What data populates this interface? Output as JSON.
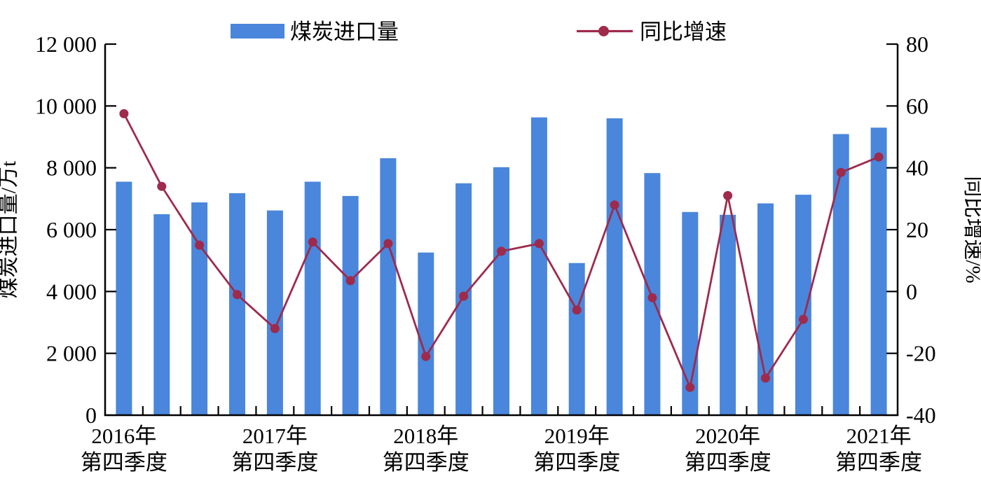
{
  "legend": {
    "bar_label": "煤炭进口量",
    "line_label": "同比增速"
  },
  "left_axis": {
    "title": "煤炭进口量/万t",
    "ticks": [
      "12 000",
      "10 000",
      "8 000",
      "6 000",
      "4 000",
      "2 000",
      "0"
    ]
  },
  "right_axis": {
    "title": "同比增速/%",
    "ticks": [
      "80",
      "60",
      "40",
      "20",
      "0",
      "-20",
      "-40"
    ]
  },
  "x_axis": {
    "labels": [
      {
        "index": 0,
        "year": "2016年",
        "quarter": "第四季度"
      },
      {
        "index": 4,
        "year": "2017年",
        "quarter": "第四季度"
      },
      {
        "index": 8,
        "year": "2018年",
        "quarter": "第四季度"
      },
      {
        "index": 12,
        "year": "2019年",
        "quarter": "第四季度"
      },
      {
        "index": 16,
        "year": "2020年",
        "quarter": "第四季度"
      },
      {
        "index": 20,
        "year": "2021年",
        "quarter": "第四季度"
      }
    ]
  },
  "colors": {
    "bar": "#4a86db",
    "line": "#9e2a4c",
    "axis": "#000000"
  },
  "chart_data": {
    "type": "combo-bar-line",
    "categories": [
      "2016Q4",
      "2017Q1",
      "2017Q2",
      "2017Q3",
      "2017Q4",
      "2018Q1",
      "2018Q2",
      "2018Q3",
      "2018Q4",
      "2019Q1",
      "2019Q2",
      "2019Q3",
      "2019Q4",
      "2020Q1",
      "2020Q2",
      "2020Q3",
      "2020Q4",
      "2021Q1",
      "2021Q2",
      "2021Q3",
      "2021Q4"
    ],
    "series": [
      {
        "name": "煤炭进口量",
        "type": "bar",
        "y_axis": "left",
        "unit": "万t",
        "values": [
          7550,
          6500,
          6880,
          7180,
          6620,
          7550,
          7090,
          8310,
          5260,
          7500,
          8020,
          9630,
          4920,
          9600,
          7830,
          6570,
          6480,
          6850,
          7130,
          9090,
          9300
        ]
      },
      {
        "name": "同比增速",
        "type": "line",
        "y_axis": "right",
        "unit": "%",
        "values": [
          57.5,
          34,
          15,
          -1,
          -12,
          16,
          3.5,
          15.5,
          -21,
          -1.5,
          13,
          15.5,
          -6,
          28,
          -2,
          -31,
          31,
          -28,
          -9,
          38.5,
          43.5
        ]
      }
    ],
    "left_ylim": [
      0,
      12000
    ],
    "right_ylim": [
      -40,
      80
    ],
    "left_tick_step": 2000,
    "right_tick_step": 20,
    "left_ylabel": "煤炭进口量/万t",
    "right_ylabel": "同比增速/%",
    "title": "",
    "xlabel": "",
    "grid": false,
    "legend_position": "top"
  }
}
